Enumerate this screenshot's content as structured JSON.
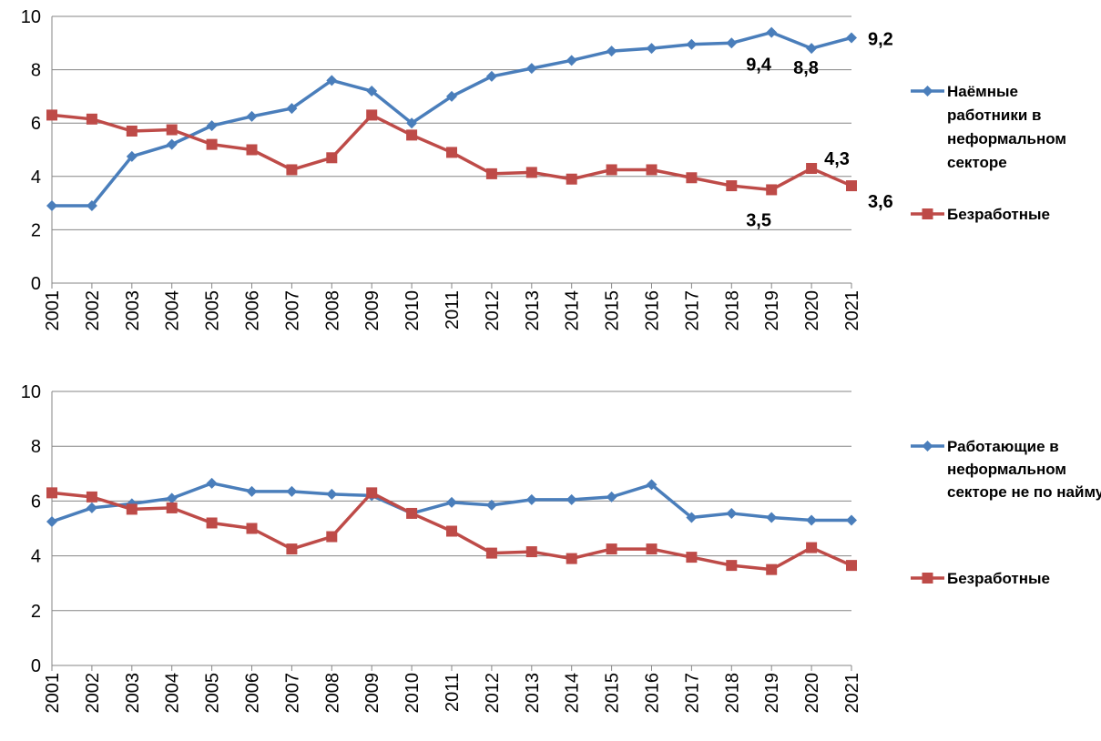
{
  "colors": {
    "series1": "#4A7EBB",
    "series2": "#BE4B48",
    "grid": "#868686",
    "axis": "#868686"
  },
  "chart_data": [
    {
      "type": "line",
      "x": [
        "2001",
        "2002",
        "2003",
        "2004",
        "2005",
        "2006",
        "2007",
        "2008",
        "2009",
        "2010",
        "2011",
        "2012",
        "2013",
        "2014",
        "2015",
        "2016",
        "2017",
        "2018",
        "2019",
        "2020",
        "2021"
      ],
      "ylim": [
        0,
        10
      ],
      "yticks": [
        "0",
        "2",
        "4",
        "6",
        "8",
        "10"
      ],
      "grid": true,
      "legend_position": "right",
      "series": [
        {
          "name_lines": [
            "Наёмные",
            "работники в",
            "неформальном",
            "секторе"
          ],
          "marker": "diamond",
          "values": [
            2.9,
            2.9,
            4.75,
            5.2,
            5.9,
            6.25,
            6.55,
            7.6,
            7.2,
            6.0,
            7.0,
            7.75,
            8.05,
            8.35,
            8.7,
            8.8,
            8.95,
            9.0,
            9.4,
            8.8,
            9.2
          ]
        },
        {
          "name_lines": [
            "Безработные"
          ],
          "marker": "square",
          "values": [
            6.3,
            6.15,
            5.7,
            5.75,
            5.2,
            5.0,
            4.25,
            4.7,
            6.3,
            5.55,
            4.9,
            4.1,
            4.15,
            3.9,
            4.25,
            4.25,
            3.95,
            3.65,
            3.5,
            4.3,
            3.65
          ]
        }
      ],
      "annotations": [
        {
          "text": "9,4",
          "year": "2019",
          "series": 0
        },
        {
          "text": "8,8",
          "year": "2020",
          "series": 0
        },
        {
          "text": "9,2",
          "year": "2021",
          "series": 0
        },
        {
          "text": "3,5",
          "year": "2019",
          "series": 1
        },
        {
          "text": "4,3",
          "year": "2020",
          "series": 1
        },
        {
          "text": "3,6",
          "year": "2021",
          "series": 1
        }
      ]
    },
    {
      "type": "line",
      "x": [
        "2001",
        "2002",
        "2003",
        "2004",
        "2005",
        "2006",
        "2007",
        "2008",
        "2009",
        "2010",
        "2011",
        "2012",
        "2013",
        "2014",
        "2015",
        "2016",
        "2017",
        "2018",
        "2019",
        "2020",
        "2021"
      ],
      "ylim": [
        0,
        10
      ],
      "yticks": [
        "0",
        "2",
        "4",
        "6",
        "8",
        "10"
      ],
      "grid": true,
      "legend_position": "right",
      "series": [
        {
          "name_lines": [
            "Работающие в",
            "неформальном",
            "секторе не по найму"
          ],
          "marker": "diamond",
          "values": [
            5.25,
            5.75,
            5.9,
            6.1,
            6.65,
            6.35,
            6.35,
            6.25,
            6.2,
            5.55,
            5.95,
            5.85,
            6.05,
            6.05,
            6.15,
            6.6,
            5.4,
            5.55,
            5.4,
            5.3,
            5.3
          ]
        },
        {
          "name_lines": [
            "Безработные"
          ],
          "marker": "square",
          "values": [
            6.3,
            6.15,
            5.7,
            5.75,
            5.2,
            5.0,
            4.25,
            4.7,
            6.3,
            5.55,
            4.9,
            4.1,
            4.15,
            3.9,
            4.25,
            4.25,
            3.95,
            3.65,
            3.5,
            4.3,
            3.65
          ]
        }
      ],
      "annotations": []
    }
  ]
}
